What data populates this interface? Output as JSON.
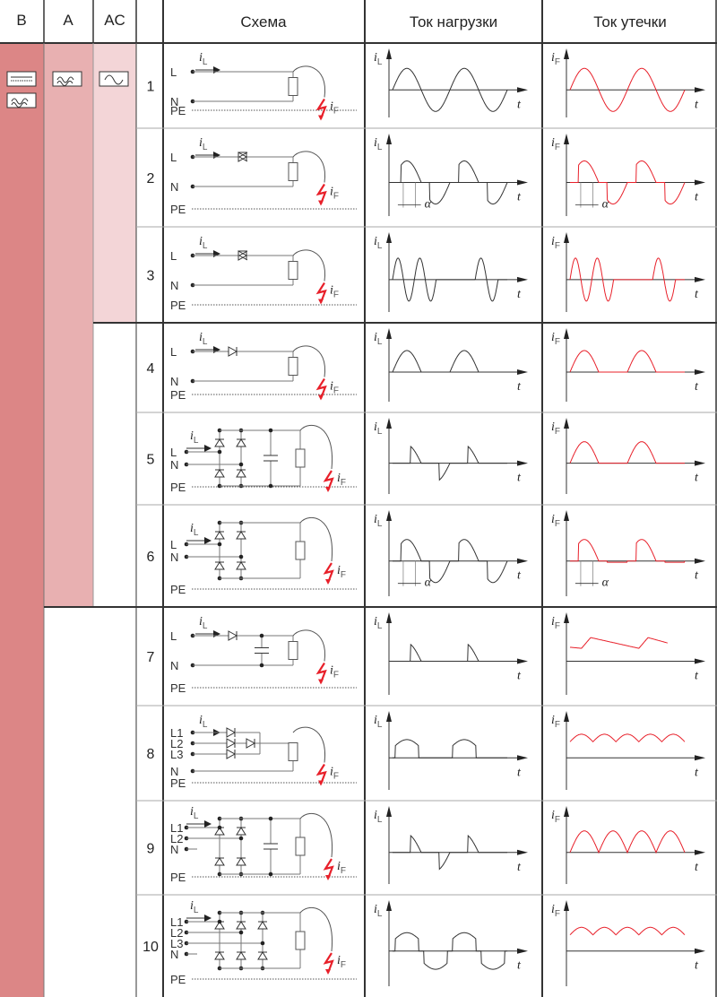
{
  "header": {
    "col_b": "B",
    "col_a": "A",
    "col_ac": "AC",
    "col_num": "",
    "col_scheme": "Схема",
    "col_load": "Ток нагрузки",
    "col_leak": "Ток утечки"
  },
  "class_icons": {
    "b": [
      "dc-smooth-icon",
      "pulsating-dc-icon"
    ],
    "a": [
      "pulsating-dc-icon"
    ],
    "ac": [
      "sine-ac-icon"
    ]
  },
  "class_spans": {
    "b": "1-10",
    "a": "1-6",
    "ac": "1-3"
  },
  "colors": {
    "b": "#dc8686",
    "a": "#e8b0b1",
    "ac": "#f3d5d7",
    "leak_wave": "#e8202a",
    "grid": "#333333"
  },
  "labels": {
    "i": "i",
    "load_sub": "L",
    "leak_sub": "F",
    "t": "t",
    "alpha": "α",
    "pe": "PE"
  },
  "rows": [
    {
      "num": "1",
      "inputs": [
        "L",
        "N"
      ],
      "circuit": "direct",
      "load_wave": "sine",
      "leak_wave": "sine",
      "alpha": false
    },
    {
      "num": "2",
      "inputs": [
        "L",
        "N"
      ],
      "circuit": "triac",
      "load_wave": "phase",
      "leak_wave": "phase",
      "alpha": true
    },
    {
      "num": "3",
      "inputs": [
        "L",
        "N"
      ],
      "circuit": "triac",
      "load_wave": "burst",
      "leak_wave": "burst",
      "alpha": false
    },
    {
      "num": "4",
      "inputs": [
        "L",
        "N"
      ],
      "circuit": "diode",
      "load_wave": "half",
      "leak_wave": "half",
      "alpha": false
    },
    {
      "num": "5",
      "inputs": [
        "L",
        "N"
      ],
      "circuit": "bridge-cap",
      "load_wave": "pulse-alt",
      "leak_wave": "half",
      "alpha": false
    },
    {
      "num": "6",
      "inputs": [
        "L",
        "N"
      ],
      "circuit": "bridge-thyristor",
      "load_wave": "phase",
      "leak_wave": "phase-pos",
      "alpha": true
    },
    {
      "num": "7",
      "inputs": [
        "L",
        "N"
      ],
      "circuit": "diode-cap",
      "load_wave": "pulse-pos",
      "leak_wave": "sawtooth",
      "alpha": false
    },
    {
      "num": "8",
      "inputs": [
        "L1",
        "L2",
        "L3",
        "N"
      ],
      "circuit": "three-phase-star",
      "load_wave": "block-pos",
      "leak_wave": "ripple",
      "alpha": false
    },
    {
      "num": "9",
      "inputs": [
        "L1",
        "L2",
        "N"
      ],
      "circuit": "bridge-cap",
      "load_wave": "pulse-alt",
      "leak_wave": "full",
      "alpha": false
    },
    {
      "num": "10",
      "inputs": [
        "L1",
        "L2",
        "L3",
        "N"
      ],
      "circuit": "three-phase-bridge",
      "load_wave": "block-alt",
      "leak_wave": "ripple",
      "alpha": false
    }
  ]
}
